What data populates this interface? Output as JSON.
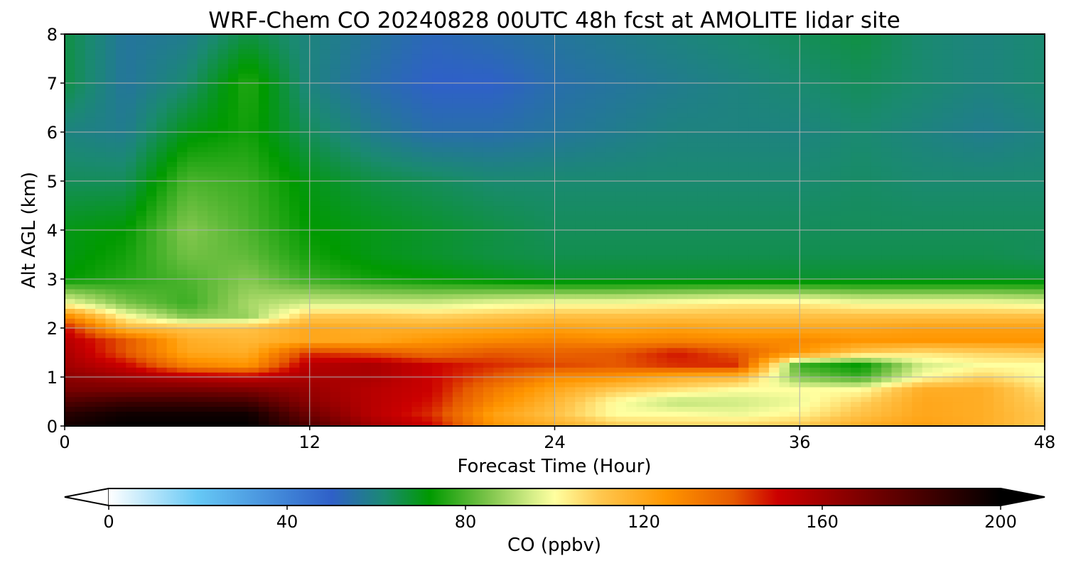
{
  "chart_data": {
    "type": "heatmap",
    "title": "WRF-Chem CO  20240828 00UTC 48h fcst at AMOLITE lidar site",
    "xlabel": "Forecast Time (Hour)",
    "ylabel": "Alt AGL (km)",
    "xlim": [
      0,
      48
    ],
    "ylim": [
      0,
      8
    ],
    "xticks": [
      "0",
      "12",
      "24",
      "36",
      "48"
    ],
    "xtick_values": [
      0,
      12,
      24,
      36,
      48
    ],
    "yticks": [
      "0",
      "1",
      "2",
      "3",
      "4",
      "5",
      "6",
      "7",
      "8"
    ],
    "ytick_values": [
      0,
      1,
      2,
      3,
      4,
      5,
      6,
      7,
      8
    ],
    "grid": true,
    "colorbar": {
      "label": "CO  (ppbv)",
      "min": 0,
      "max": 200,
      "extend": "both",
      "ticks": [
        "0",
        "40",
        "80",
        "120",
        "160",
        "200"
      ],
      "tick_values": [
        0,
        40,
        80,
        120,
        160,
        200
      ],
      "colors": [
        {
          "v": 0,
          "c": "#ffffff"
        },
        {
          "v": 20,
          "c": "#66c8f5"
        },
        {
          "v": 40,
          "c": "#3f82d6"
        },
        {
          "v": 50,
          "c": "#2f60c8"
        },
        {
          "v": 62,
          "c": "#1a8a70"
        },
        {
          "v": 72,
          "c": "#009a00"
        },
        {
          "v": 85,
          "c": "#7cc44a"
        },
        {
          "v": 95,
          "c": "#d6ee88"
        },
        {
          "v": 100,
          "c": "#ffffa0"
        },
        {
          "v": 110,
          "c": "#ffc850"
        },
        {
          "v": 125,
          "c": "#ff9600"
        },
        {
          "v": 140,
          "c": "#e65a00"
        },
        {
          "v": 150,
          "c": "#cc0000"
        },
        {
          "v": 165,
          "c": "#8c0000"
        },
        {
          "v": 185,
          "c": "#3c0000"
        },
        {
          "v": 200,
          "c": "#000000"
        }
      ]
    },
    "time_hours": [
      0,
      3,
      6,
      9,
      12,
      15,
      18,
      21,
      24,
      27,
      30,
      33,
      36,
      39,
      42,
      45,
      48
    ],
    "altitude_km": [
      0,
      0.25,
      0.5,
      0.75,
      1,
      1.25,
      1.5,
      1.75,
      2,
      2.25,
      2.5,
      3,
      3.5,
      4,
      5,
      6,
      7,
      8
    ],
    "co_ppbv": [
      [
        195,
        200,
        200,
        200,
        180,
        160,
        150,
        125,
        118,
        110,
        108,
        108,
        110,
        118,
        122,
        118,
        110
      ],
      [
        190,
        196,
        196,
        196,
        172,
        155,
        145,
        122,
        112,
        100,
        100,
        98,
        102,
        112,
        120,
        118,
        110
      ],
      [
        180,
        185,
        185,
        183,
        165,
        155,
        148,
        128,
        115,
        100,
        92,
        94,
        98,
        108,
        120,
        118,
        108
      ],
      [
        170,
        170,
        170,
        168,
        162,
        155,
        150,
        132,
        120,
        110,
        105,
        100,
        100,
        100,
        118,
        118,
        105
      ],
      [
        165,
        160,
        155,
        152,
        158,
        158,
        150,
        140,
        128,
        125,
        118,
        115,
        85,
        78,
        100,
        108,
        100
      ],
      [
        160,
        150,
        130,
        125,
        155,
        158,
        150,
        145,
        142,
        140,
        145,
        145,
        78,
        72,
        95,
        100,
        100
      ],
      [
        158,
        140,
        120,
        118,
        145,
        140,
        135,
        140,
        138,
        140,
        148,
        140,
        125,
        110,
        105,
        108,
        110
      ],
      [
        155,
        140,
        118,
        115,
        120,
        120,
        125,
        128,
        130,
        128,
        130,
        128,
        128,
        125,
        125,
        125,
        125
      ],
      [
        150,
        115,
        112,
        112,
        120,
        118,
        118,
        120,
        122,
        120,
        122,
        120,
        120,
        120,
        122,
        122,
        122
      ],
      [
        128,
        100,
        85,
        88,
        110,
        110,
        108,
        110,
        112,
        112,
        112,
        112,
        112,
        112,
        112,
        112,
        112
      ],
      [
        100,
        85,
        78,
        90,
        95,
        95,
        95,
        98,
        100,
        100,
        102,
        104,
        104,
        100,
        100,
        100,
        98
      ],
      [
        72,
        76,
        80,
        86,
        78,
        74,
        72,
        70,
        68,
        68,
        68,
        68,
        68,
        68,
        68,
        68,
        68
      ],
      [
        70,
        74,
        84,
        82,
        74,
        70,
        68,
        66,
        65,
        65,
        65,
        65,
        65,
        65,
        65,
        65,
        64
      ],
      [
        70,
        72,
        86,
        80,
        72,
        70,
        68,
        66,
        64,
        64,
        64,
        64,
        64,
        64,
        64,
        64,
        64
      ],
      [
        64,
        64,
        80,
        78,
        70,
        66,
        64,
        62,
        62,
        62,
        62,
        62,
        62,
        63,
        62,
        62,
        62
      ],
      [
        60,
        58,
        70,
        74,
        64,
        58,
        54,
        54,
        56,
        58,
        60,
        60,
        60,
        62,
        60,
        58,
        60
      ],
      [
        66,
        56,
        62,
        76,
        60,
        54,
        50,
        50,
        54,
        56,
        58,
        60,
        62,
        64,
        62,
        60,
        62
      ],
      [
        66,
        56,
        58,
        66,
        60,
        56,
        52,
        54,
        56,
        58,
        60,
        62,
        64,
        66,
        62,
        60,
        62
      ]
    ]
  }
}
